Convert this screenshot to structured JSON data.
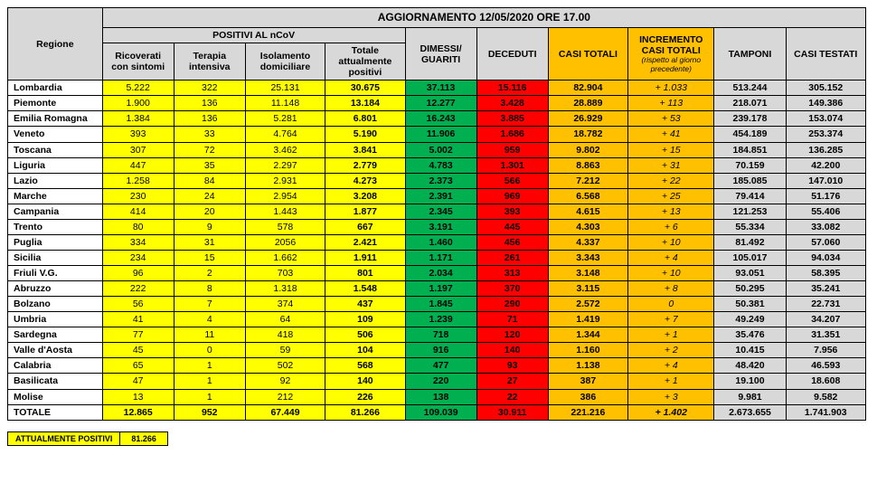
{
  "title": "AGGIORNAMENTO 12/05/2020 ORE 17.00",
  "headers": {
    "regione": "Regione",
    "positivi": "POSITIVI AL nCoV",
    "ricoverati": "Ricoverati con sintomi",
    "terapia": "Terapia intensiva",
    "isolamento": "Isolamento domiciliare",
    "totale_pos": "Totale attualmente positivi",
    "dimessi": "DIMESSI/ GUARITI",
    "deceduti": "DECEDUTI",
    "casi_totali": "CASI TOTALI",
    "incremento": "INCREMENTO CASI TOTALI",
    "incremento_sub": "(rispetto al giorno precedente)",
    "tamponi": "TAMPONI",
    "testati": "CASI TESTATI"
  },
  "rows": [
    {
      "r": "Lombardia",
      "ric": "5.222",
      "ter": "322",
      "iso": "25.131",
      "tot": "30.675",
      "dim": "37.113",
      "dec": "15.116",
      "casi": "82.904",
      "inc": "+ 1.033",
      "tam": "513.244",
      "test": "305.152"
    },
    {
      "r": "Piemonte",
      "ric": "1.900",
      "ter": "136",
      "iso": "11.148",
      "tot": "13.184",
      "dim": "12.277",
      "dec": "3.428",
      "casi": "28.889",
      "inc": "+ 113",
      "tam": "218.071",
      "test": "149.386"
    },
    {
      "r": "Emilia Romagna",
      "ric": "1.384",
      "ter": "136",
      "iso": "5.281",
      "tot": "6.801",
      "dim": "16.243",
      "dec": "3.885",
      "casi": "26.929",
      "inc": "+ 53",
      "tam": "239.178",
      "test": "153.074"
    },
    {
      "r": "Veneto",
      "ric": "393",
      "ter": "33",
      "iso": "4.764",
      "tot": "5.190",
      "dim": "11.906",
      "dec": "1.686",
      "casi": "18.782",
      "inc": "+ 41",
      "tam": "454.189",
      "test": "253.374"
    },
    {
      "r": "Toscana",
      "ric": "307",
      "ter": "72",
      "iso": "3.462",
      "tot": "3.841",
      "dim": "5.002",
      "dec": "959",
      "casi": "9.802",
      "inc": "+ 15",
      "tam": "184.851",
      "test": "136.285"
    },
    {
      "r": "Liguria",
      "ric": "447",
      "ter": "35",
      "iso": "2.297",
      "tot": "2.779",
      "dim": "4.783",
      "dec": "1.301",
      "casi": "8.863",
      "inc": "+ 31",
      "tam": "70.159",
      "test": "42.200"
    },
    {
      "r": "Lazio",
      "ric": "1.258",
      "ter": "84",
      "iso": "2.931",
      "tot": "4.273",
      "dim": "2.373",
      "dec": "566",
      "casi": "7.212",
      "inc": "+ 22",
      "tam": "185.085",
      "test": "147.010"
    },
    {
      "r": "Marche",
      "ric": "230",
      "ter": "24",
      "iso": "2.954",
      "tot": "3.208",
      "dim": "2.391",
      "dec": "969",
      "casi": "6.568",
      "inc": "+ 25",
      "tam": "79.414",
      "test": "51.176"
    },
    {
      "r": "Campania",
      "ric": "414",
      "ter": "20",
      "iso": "1.443",
      "tot": "1.877",
      "dim": "2.345",
      "dec": "393",
      "casi": "4.615",
      "inc": "+ 13",
      "tam": "121.253",
      "test": "55.406"
    },
    {
      "r": "Trento",
      "ric": "80",
      "ter": "9",
      "iso": "578",
      "tot": "667",
      "dim": "3.191",
      "dec": "445",
      "casi": "4.303",
      "inc": "+ 6",
      "tam": "55.334",
      "test": "33.082"
    },
    {
      "r": "Puglia",
      "ric": "334",
      "ter": "31",
      "iso": "2056",
      "tot": "2.421",
      "dim": "1.460",
      "dec": "456",
      "casi": "4.337",
      "inc": "+ 10",
      "tam": "81.492",
      "test": "57.060"
    },
    {
      "r": "Sicilia",
      "ric": "234",
      "ter": "15",
      "iso": "1.662",
      "tot": "1.911",
      "dim": "1.171",
      "dec": "261",
      "casi": "3.343",
      "inc": "+ 4",
      "tam": "105.017",
      "test": "94.034"
    },
    {
      "r": "Friuli V.G.",
      "ric": "96",
      "ter": "2",
      "iso": "703",
      "tot": "801",
      "dim": "2.034",
      "dec": "313",
      "casi": "3.148",
      "inc": "+ 10",
      "tam": "93.051",
      "test": "58.395"
    },
    {
      "r": "Abruzzo",
      "ric": "222",
      "ter": "8",
      "iso": "1.318",
      "tot": "1.548",
      "dim": "1.197",
      "dec": "370",
      "casi": "3.115",
      "inc": "+ 8",
      "tam": "50.295",
      "test": "35.241"
    },
    {
      "r": "Bolzano",
      "ric": "56",
      "ter": "7",
      "iso": "374",
      "tot": "437",
      "dim": "1.845",
      "dec": "290",
      "casi": "2.572",
      "inc": "0",
      "tam": "50.381",
      "test": "22.731"
    },
    {
      "r": "Umbria",
      "ric": "41",
      "ter": "4",
      "iso": "64",
      "tot": "109",
      "dim": "1.239",
      "dec": "71",
      "casi": "1.419",
      "inc": "+ 7",
      "tam": "49.249",
      "test": "34.207"
    },
    {
      "r": "Sardegna",
      "ric": "77",
      "ter": "11",
      "iso": "418",
      "tot": "506",
      "dim": "718",
      "dec": "120",
      "casi": "1.344",
      "inc": "+ 1",
      "tam": "35.476",
      "test": "31.351"
    },
    {
      "r": "Valle d'Aosta",
      "ric": "45",
      "ter": "0",
      "iso": "59",
      "tot": "104",
      "dim": "916",
      "dec": "140",
      "casi": "1.160",
      "inc": "+ 2",
      "tam": "10.415",
      "test": "7.956"
    },
    {
      "r": "Calabria",
      "ric": "65",
      "ter": "1",
      "iso": "502",
      "tot": "568",
      "dim": "477",
      "dec": "93",
      "casi": "1.138",
      "inc": "+ 4",
      "tam": "48.420",
      "test": "46.593"
    },
    {
      "r": "Basilicata",
      "ric": "47",
      "ter": "1",
      "iso": "92",
      "tot": "140",
      "dim": "220",
      "dec": "27",
      "casi": "387",
      "inc": "+ 1",
      "tam": "19.100",
      "test": "18.608"
    },
    {
      "r": "Molise",
      "ric": "13",
      "ter": "1",
      "iso": "212",
      "tot": "226",
      "dim": "138",
      "dec": "22",
      "casi": "386",
      "inc": "+ 3",
      "tam": "9.981",
      "test": "9.582"
    }
  ],
  "total": {
    "r": "TOTALE",
    "ric": "12.865",
    "ter": "952",
    "iso": "67.449",
    "tot": "81.266",
    "dim": "109.039",
    "dec": "30.911",
    "casi": "221.216",
    "inc": "+ 1.402",
    "tam": "2.673.655",
    "test": "1.741.903"
  },
  "footer": {
    "label": "ATTUALMENTE POSITIVI",
    "value": "81.266"
  },
  "colors": {
    "grey": "#d8d8d8",
    "yellow": "#ffff00",
    "green": "#00b050",
    "red": "#ff0000",
    "orange": "#ffc000"
  }
}
